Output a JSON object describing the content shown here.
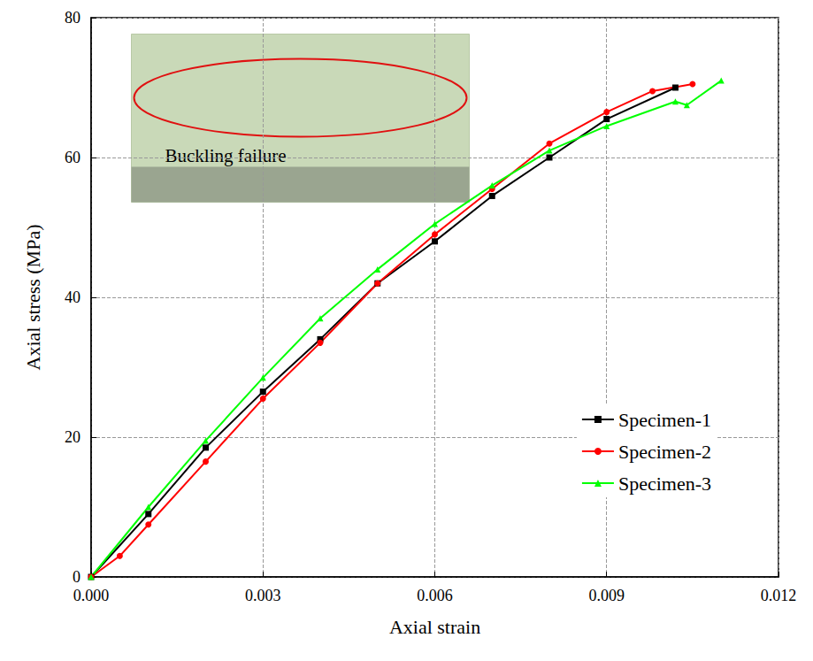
{
  "chart_data": {
    "type": "line",
    "x_label": "Axial strain",
    "y_label": "Axial stress (MPa)",
    "annotation": "Buckling failure",
    "xlim": [
      0,
      0.012
    ],
    "xticks": [
      {
        "value": 0,
        "label": "0.000"
      },
      {
        "value": 0.003,
        "label": "0.003"
      },
      {
        "value": 0.006,
        "label": "0.006"
      },
      {
        "value": 0.009,
        "label": "0.009"
      },
      {
        "value": 0.012,
        "label": "0.012"
      }
    ],
    "ylim": [
      0,
      80
    ],
    "yticks": [
      0,
      20,
      40,
      60,
      80
    ],
    "grid": true,
    "legend": "lower right",
    "series": [
      {
        "name": "Specimen-1",
        "color": "#000000",
        "marker": "square",
        "x": [
          0,
          0.001,
          0.002,
          0.003,
          0.004,
          0.005,
          0.006,
          0.007,
          0.008,
          0.009,
          0.0102
        ],
        "values": [
          0,
          9,
          18.5,
          26.5,
          34,
          42,
          48,
          54.5,
          60,
          65.5,
          70
        ]
      },
      {
        "name": "Specimen-2",
        "color": "#ff0000",
        "marker": "circle",
        "x": [
          0,
          0.0005,
          0.001,
          0.002,
          0.003,
          0.004,
          0.005,
          0.006,
          0.007,
          0.008,
          0.009,
          0.0098,
          0.0105
        ],
        "values": [
          0,
          3,
          7.5,
          16.5,
          25.5,
          33.5,
          42,
          49,
          55.5,
          62,
          66.5,
          69.5,
          70.5
        ]
      },
      {
        "name": "Specimen-3",
        "color": "#00ff00",
        "marker": "triangle",
        "x": [
          0,
          0.001,
          0.002,
          0.003,
          0.004,
          0.005,
          0.006,
          0.007,
          0.008,
          0.009,
          0.0102,
          0.0104,
          0.011
        ],
        "values": [
          0,
          10,
          19.5,
          28.5,
          37,
          44,
          50.5,
          56,
          61,
          64.5,
          68,
          67.5,
          71
        ]
      }
    ]
  }
}
